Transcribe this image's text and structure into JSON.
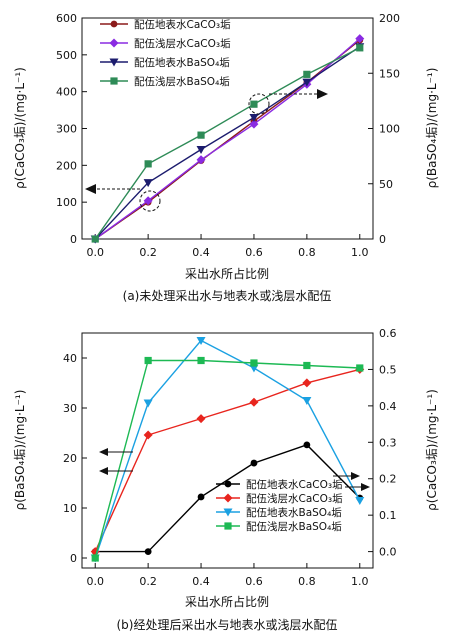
{
  "chart_data": [
    {
      "type": "line",
      "x": [
        0.0,
        0.2,
        0.4,
        0.6,
        0.8,
        1.0
      ],
      "x_ticks": [
        "0.0",
        "0.2",
        "0.4",
        "0.6",
        "0.8",
        "1.0"
      ],
      "xlabel": "采出水所占比例",
      "ylabel_left": "ρ(CaCO₃垢)/(mg·L⁻¹)",
      "ylabel_right": "ρ(BaSO₄垢)/(mg·L⁻¹)",
      "ylim_left": [
        0,
        600
      ],
      "ylim_right": [
        0,
        200
      ],
      "y_ticks_left": [
        "0",
        "100",
        "200",
        "300",
        "400",
        "500",
        "600"
      ],
      "y_ticks_right": [
        "0",
        "50",
        "100",
        "150",
        "200"
      ],
      "caption": "(a)未处理采出水与地表水或浅层水配伍",
      "legend_position": "top-left",
      "series": [
        {
          "name": "配伍地表水CaCO₃垢",
          "axis": "left",
          "marker": "circle",
          "color": "#8b1a1a",
          "values": [
            0,
            100,
            213,
            320,
            425,
            540
          ]
        },
        {
          "name": "配伍浅层水CaCO₃垢",
          "axis": "left",
          "marker": "diamond",
          "color": "#8a2be2",
          "values": [
            0,
            104,
            215,
            312,
            420,
            544
          ]
        },
        {
          "name": "配伍地表水BaSO₄垢",
          "axis": "right",
          "marker": "triangle-down",
          "color": "#1c1c6e",
          "values": [
            0,
            51,
            81,
            110,
            142,
            174
          ]
        },
        {
          "name": "配伍浅层水BaSO₄垢",
          "axis": "right",
          "marker": "square",
          "color": "#2e8b57",
          "values": [
            0,
            68,
            94,
            122,
            149,
            173
          ]
        }
      ]
    },
    {
      "type": "line",
      "x": [
        0.0,
        0.2,
        0.4,
        0.6,
        0.8,
        1.0
      ],
      "x_ticks": [
        "0.0",
        "0.2",
        "0.4",
        "0.6",
        "0.8",
        "1.0"
      ],
      "xlabel": "采出水所占比例",
      "ylabel_left": "ρ(BaSO₄垢)/(mg·L⁻¹)",
      "ylabel_right": "ρ(CaCO₃垢)/(mg·L⁻¹)",
      "ylim_left": [
        -2,
        45
      ],
      "ylim_right": [
        -0.045,
        0.6
      ],
      "y_ticks_left": [
        "0",
        "10",
        "20",
        "30",
        "40"
      ],
      "y_ticks_right": [
        "0.0",
        "0.1",
        "0.2",
        "0.3",
        "0.4",
        "0.5",
        "0.6"
      ],
      "caption": "(b)经处理后采出水与地表水或浅层水配伍",
      "legend_position": "bottom-right",
      "series": [
        {
          "name": "配伍地表水CaCO₃垢",
          "axis": "right",
          "marker": "circle",
          "color": "#000000",
          "values": [
            0,
            0,
            0.15,
            0.243,
            0.293,
            0.147
          ]
        },
        {
          "name": "配伍浅层水CaCO₃垢",
          "axis": "right",
          "marker": "diamond",
          "color": "#e8251e",
          "values": [
            0,
            0.32,
            0.365,
            0.41,
            0.463,
            0.5
          ]
        },
        {
          "name": "配伍地表水BaSO₄垢",
          "axis": "left",
          "marker": "triangle-down",
          "color": "#1ba1e2",
          "values": [
            0,
            31,
            43.5,
            38,
            31.5,
            11.5
          ]
        },
        {
          "name": "配伍浅层水BaSO₄垢",
          "axis": "left",
          "marker": "square",
          "color": "#1db954",
          "values": [
            0,
            39.5,
            39.5,
            39,
            38.5,
            38
          ]
        }
      ]
    }
  ]
}
